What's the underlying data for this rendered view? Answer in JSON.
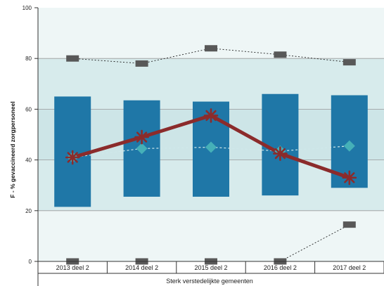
{
  "chart_data": {
    "type": "bar",
    "ylabel": "F - % gevaccineerd zorgpersoneel",
    "group_label": "Sterk verstedelijkte gemeenten",
    "categories": [
      "2013 deel 2",
      "2014 deel 2",
      "2015 deel 2",
      "2016 deel 2",
      "2017 deel 2"
    ],
    "ylim": [
      0,
      100
    ],
    "yticks": [
      0,
      20,
      40,
      60,
      80,
      100
    ],
    "grid": true,
    "range_bars": {
      "low": [
        21.5,
        25.5,
        25.5,
        26,
        29
      ],
      "high": [
        65,
        63.5,
        63,
        66,
        65.5
      ]
    },
    "series": [
      {
        "values": [
          80,
          78,
          84,
          81.5,
          78.5
        ],
        "marker": "dash"
      },
      {
        "values": [
          0,
          0,
          0,
          0,
          14.5
        ],
        "marker": "dash"
      },
      {
        "values": [
          41,
          44.5,
          45,
          43.5,
          45.5
        ],
        "marker": "diamond"
      },
      {
        "values": [
          41,
          49,
          57.5,
          42.5,
          33
        ],
        "marker": "asterisk"
      }
    ],
    "bands": [
      {
        "from": 20,
        "to": 40,
        "color": "#d7ebec"
      },
      {
        "from": 40,
        "to": 60,
        "color": "#cde5e7"
      },
      {
        "from": 60,
        "to": 80,
        "color": "#d7ebec"
      }
    ],
    "colors": {
      "background": "#eef6f6",
      "bar": "#1f77a7",
      "main_line": "#8b2b2b",
      "diamond": "#45b0b8",
      "dash_marker": "#585858",
      "grid": "#9a9a9a"
    }
  }
}
